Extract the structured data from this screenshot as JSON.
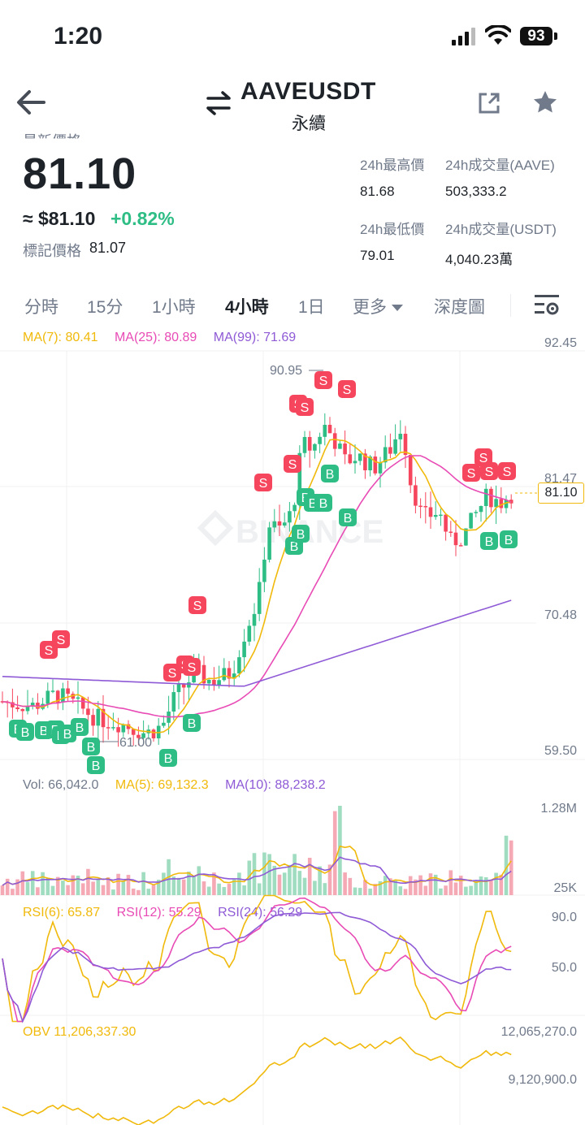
{
  "status_bar": {
    "time": "1:20",
    "battery": "93"
  },
  "header": {
    "pair": "AAVEUSDT",
    "subtitle": "永續"
  },
  "ticker": {
    "last_price_label": "最新價格",
    "last_price": "81.10",
    "usd_value": "≈ $81.10",
    "change": "+0.82%",
    "mark_price_label": "標記價格",
    "mark_price": "81.07",
    "high_label": "24h最高價",
    "high": "81.68",
    "low_label": "24h最低價",
    "low": "79.01",
    "vol_base_label": "24h成交量(AAVE)",
    "vol_base": "503,333.2",
    "vol_quote_label": "24h成交量(USDT)",
    "vol_quote": "4,040.23萬"
  },
  "tabs": [
    "分時",
    "15分",
    "1小時",
    "4小時",
    "1日",
    "更多",
    "深度圖"
  ],
  "active_tab": "4小時",
  "colors": {
    "up": "#2ebd85",
    "down": "#f6465d",
    "ma7": "#f0b90b",
    "ma25": "#e84bb5",
    "ma99": "#8e5ad6",
    "accent": "#f0b90b"
  },
  "main_chart": {
    "ma7": "MA(7): 80.41",
    "ma25": "MA(25): 80.89",
    "ma99": "MA(99): 71.69",
    "y_labels": [
      "92.45",
      "81.47",
      "70.48",
      "59.50"
    ],
    "last_price_tag": "81.10",
    "high_marker": "90.95",
    "low_marker": "61.00",
    "buy_label": "B",
    "sell_label": "S"
  },
  "volume_chart": {
    "vol": "Vol: 66,042.0",
    "ma5": "MA(5): 69,132.3",
    "ma10": "MA(10): 88,238.2",
    "y_labels": [
      "1.28M",
      "25K"
    ]
  },
  "rsi_chart": {
    "rsi6": "RSI(6): 65.87",
    "rsi12": "RSI(12): 55.29",
    "rsi24": "RSI(24): 56.29",
    "y_labels": [
      "90.0",
      "50.0"
    ]
  },
  "obv_chart": {
    "obv": "OBV 11,206,337.30",
    "y_labels": [
      "12,065,270.0",
      "9,120,900.0"
    ]
  },
  "watermark": "BINANCE"
}
